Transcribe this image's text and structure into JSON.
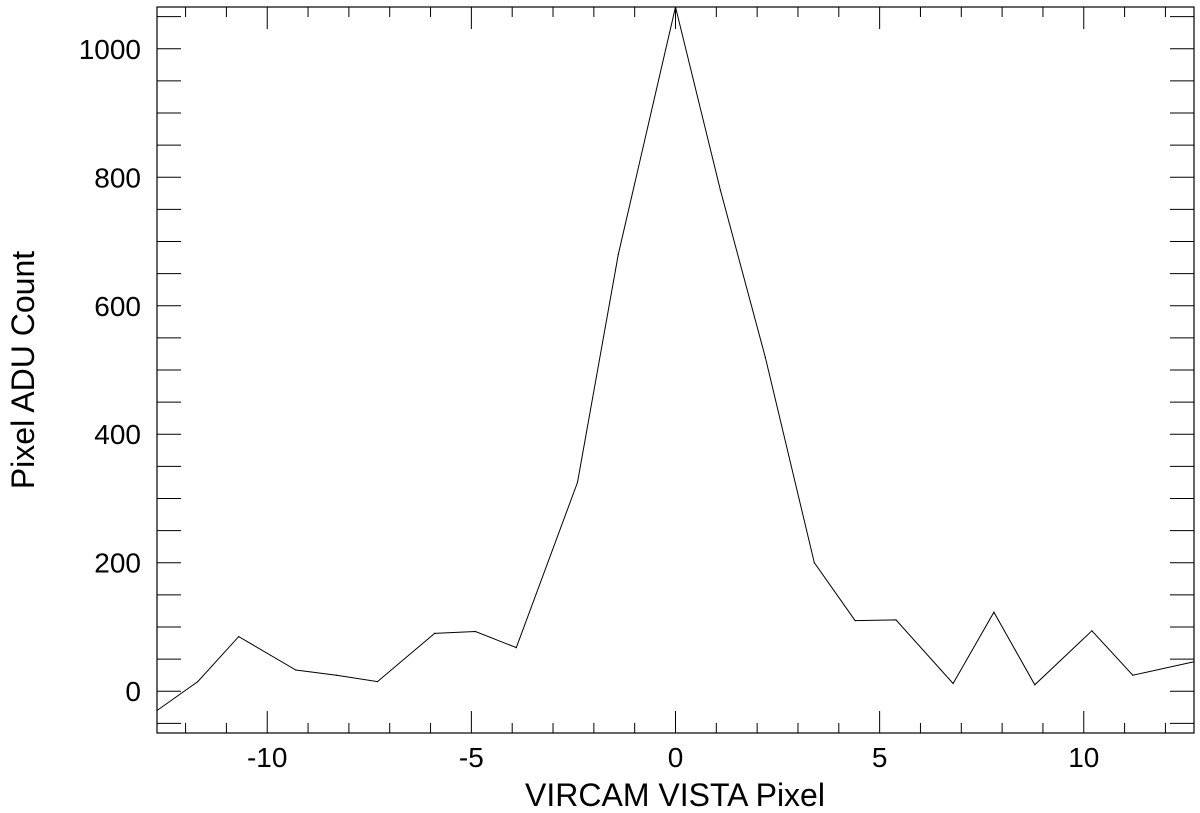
{
  "chart_data": {
    "type": "line",
    "xlabel": "VIRCAM VISTA Pixel",
    "ylabel": "Pixel ADU Count",
    "xlim": [
      -12.7,
      12.7
    ],
    "ylim": [
      -65,
      1065
    ],
    "x_major_ticks": [
      -10,
      -5,
      0,
      5,
      10
    ],
    "x_tick_labels": [
      "-10",
      "-5",
      "0",
      "5",
      "10"
    ],
    "x_minor_step": 1,
    "y_major_ticks": [
      0,
      200,
      400,
      600,
      800,
      1000
    ],
    "y_tick_labels": [
      "0",
      "200",
      "400",
      "600",
      "800",
      "1000"
    ],
    "y_minor_step": 50,
    "grid": false,
    "legend": "none",
    "series": [
      {
        "color": "#000000",
        "x": [
          -12.7,
          -11.7,
          -10.7,
          -9.3,
          -8.3,
          -7.3,
          -5.9,
          -4.9,
          -3.9,
          -2.4,
          -1.4,
          0.0,
          1.1,
          2.2,
          3.4,
          4.4,
          5.4,
          6.8,
          7.8,
          8.8,
          10.2,
          11.2,
          12.7
        ],
        "y": [
          -30,
          15,
          85,
          33,
          25,
          15,
          90,
          93,
          68,
          325,
          680,
          1065,
          780,
          520,
          200,
          110,
          111,
          12,
          123,
          10,
          94,
          25,
          46
        ]
      }
    ]
  }
}
